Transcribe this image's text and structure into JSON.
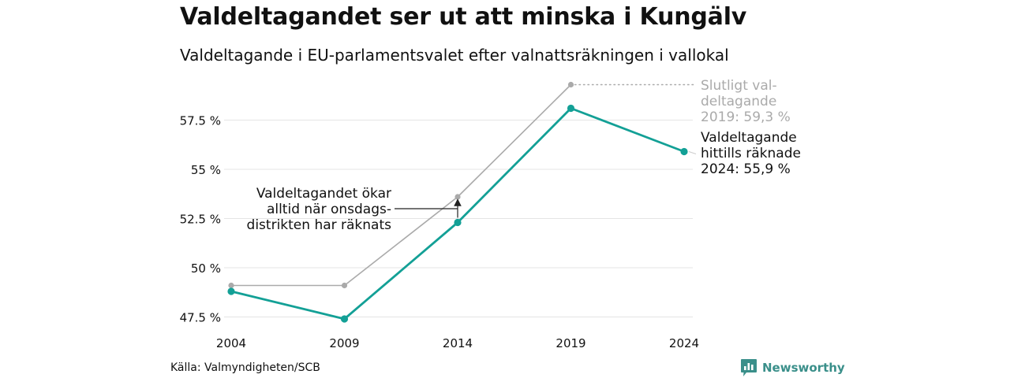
{
  "title": "Valdeltagandet ser ut att minska i Kungälv",
  "subtitle": "Valdeltagande i EU-parlamentsvalet efter valnattsräkningen i vallokal",
  "source": "Källa: Valmyndigheten/SCB",
  "brand": {
    "name": "Newsworthy",
    "color": "#3a8f8a"
  },
  "chart_data": {
    "type": "line",
    "x": [
      2004,
      2009,
      2014,
      2019,
      2024
    ],
    "x_tick_labels": [
      "2004",
      "2009",
      "2014",
      "2019",
      "2024"
    ],
    "ylim": [
      47.0,
      59.8
    ],
    "y_ticks": [
      47.5,
      50,
      52.5,
      55,
      57.5
    ],
    "y_tick_labels": [
      "47.5 %",
      "50 %",
      "52.5 %",
      "55 %",
      "57.5 %"
    ],
    "grid": true,
    "series": [
      {
        "key": "final",
        "values": [
          49.1,
          49.1,
          53.6,
          59.3,
          null
        ],
        "color": "#aaaaaa"
      },
      {
        "key": "counted",
        "values": [
          48.8,
          47.4,
          52.3,
          58.1,
          55.9
        ],
        "color": "#13a096"
      }
    ],
    "annotations": {
      "final_label": [
        "Slutligt val-",
        "deltagande",
        "2019: 59,3 %"
      ],
      "counted_label": [
        "Valdeltagande",
        "hittills räknade",
        "2024: 55,9 %"
      ],
      "note": [
        "Valdeltagandet ökar",
        "alltid när onsdags-",
        "distrikten har räknats"
      ]
    }
  }
}
